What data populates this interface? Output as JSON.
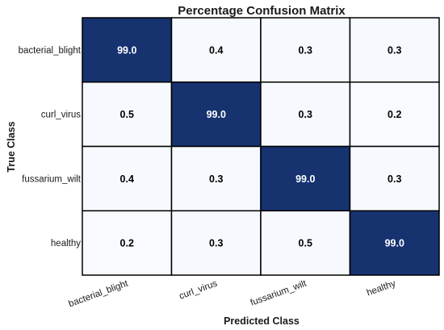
{
  "chart_data": {
    "type": "heatmap",
    "title": "Percentage Confusion Matrix",
    "xlabel": "Predicted Class",
    "ylabel": "True Class",
    "x_categories": [
      "bacterial_blight",
      "curl_virus",
      "fussarium_wilt",
      "healthy"
    ],
    "y_categories": [
      "bacterial_blight",
      "curl_virus",
      "fussarium_wilt",
      "healthy"
    ],
    "values": [
      [
        99.0,
        0.4,
        0.3,
        0.3
      ],
      [
        0.5,
        99.0,
        0.3,
        0.2
      ],
      [
        0.4,
        0.3,
        99.0,
        0.3
      ],
      [
        0.2,
        0.3,
        0.5,
        99.0
      ]
    ],
    "value_labels": [
      [
        "99.0",
        "0.4",
        "0.3",
        "0.3"
      ],
      [
        "0.5",
        "99.0",
        "0.3",
        "0.2"
      ],
      [
        "0.4",
        "0.3",
        "99.0",
        "0.3"
      ],
      [
        "0.2",
        "0.3",
        "0.5",
        "99.0"
      ]
    ],
    "value_range": [
      0,
      100
    ],
    "colors": {
      "low": "#f7fbff",
      "high": "#14306e",
      "grid_line": "#000000",
      "text_on_dark": "#ffffff",
      "text_on_light": "#000000"
    },
    "x_tick_rotation_deg": -20,
    "grid": true,
    "legend": "none"
  }
}
